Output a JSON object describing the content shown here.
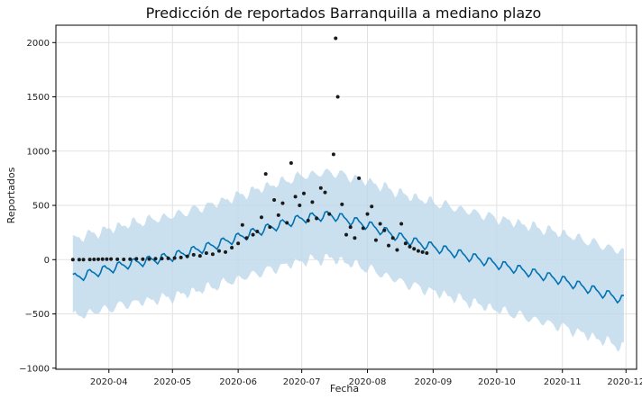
{
  "chart_data": {
    "type": "line",
    "title": "Predicción de reportados Barranquilla a mediano plazo",
    "xlabel": "Fecha",
    "ylabel": "Reportados",
    "x_ticks": [
      "2020-04",
      "2020-05",
      "2020-06",
      "2020-07",
      "2020-08",
      "2020-09",
      "2020-10",
      "2020-11",
      "2020-12"
    ],
    "x_tick_dates": [
      "2020-04-01",
      "2020-05-01",
      "2020-06-01",
      "2020-07-01",
      "2020-08-01",
      "2020-09-01",
      "2020-10-01",
      "2020-11-01",
      "2020-12-01"
    ],
    "y_ticks": [
      "−1000",
      "−500",
      "0",
      "500",
      "1000",
      "1500",
      "2000"
    ],
    "y_tick_values": [
      -1000,
      -500,
      0,
      500,
      1000,
      1500,
      2000
    ],
    "xlim": [
      "2020-03-07",
      "2020-12-06"
    ],
    "ylim": [
      -1010,
      2160
    ],
    "grid": true,
    "colors": {
      "forecast": "#0072B2",
      "interval": "#bcd7ea",
      "observed": "#1a1a1a",
      "grid": "#e2e2e2"
    },
    "forecast_anchors": [
      {
        "x": "2020-03-15",
        "y": -170
      },
      {
        "x": "2020-03-25",
        "y": -120
      },
      {
        "x": "2020-04-10",
        "y": -40
      },
      {
        "x": "2020-05-01",
        "y": 30
      },
      {
        "x": "2020-05-20",
        "y": 130
      },
      {
        "x": "2020-06-10",
        "y": 260
      },
      {
        "x": "2020-07-01",
        "y": 380
      },
      {
        "x": "2020-07-15",
        "y": 410
      },
      {
        "x": "2020-08-01",
        "y": 320
      },
      {
        "x": "2020-08-20",
        "y": 180
      },
      {
        "x": "2020-09-10",
        "y": 70
      },
      {
        "x": "2020-10-01",
        "y": -40
      },
      {
        "x": "2020-11-01",
        "y": -190
      },
      {
        "x": "2020-11-30",
        "y": -370
      }
    ],
    "weekly_amplitude": 38,
    "interval_half_width_start": 360,
    "interval_half_width_end": 440,
    "observed_points": [
      {
        "x": "2020-03-15",
        "y": 0
      },
      {
        "x": "2020-03-18",
        "y": 0
      },
      {
        "x": "2020-03-20",
        "y": 0
      },
      {
        "x": "2020-03-23",
        "y": 1
      },
      {
        "x": "2020-03-25",
        "y": 2
      },
      {
        "x": "2020-03-27",
        "y": 3
      },
      {
        "x": "2020-03-29",
        "y": 5
      },
      {
        "x": "2020-03-31",
        "y": 4
      },
      {
        "x": "2020-04-02",
        "y": 6
      },
      {
        "x": "2020-04-05",
        "y": 3
      },
      {
        "x": "2020-04-08",
        "y": 2
      },
      {
        "x": "2020-04-11",
        "y": 5
      },
      {
        "x": "2020-04-14",
        "y": 8
      },
      {
        "x": "2020-04-17",
        "y": 4
      },
      {
        "x": "2020-04-20",
        "y": 6
      },
      {
        "x": "2020-04-23",
        "y": 9
      },
      {
        "x": "2020-04-26",
        "y": 10
      },
      {
        "x": "2020-04-29",
        "y": 12
      },
      {
        "x": "2020-05-02",
        "y": 15
      },
      {
        "x": "2020-05-05",
        "y": 20
      },
      {
        "x": "2020-05-08",
        "y": 30
      },
      {
        "x": "2020-05-11",
        "y": 45
      },
      {
        "x": "2020-05-14",
        "y": 35
      },
      {
        "x": "2020-05-17",
        "y": 60
      },
      {
        "x": "2020-05-20",
        "y": 50
      },
      {
        "x": "2020-05-23",
        "y": 80
      },
      {
        "x": "2020-05-26",
        "y": 70
      },
      {
        "x": "2020-05-29",
        "y": 110
      },
      {
        "x": "2020-06-01",
        "y": 150
      },
      {
        "x": "2020-06-03",
        "y": 320
      },
      {
        "x": "2020-06-05",
        "y": 200
      },
      {
        "x": "2020-06-08",
        "y": 230
      },
      {
        "x": "2020-06-10",
        "y": 260
      },
      {
        "x": "2020-06-12",
        "y": 390
      },
      {
        "x": "2020-06-14",
        "y": 790
      },
      {
        "x": "2020-06-16",
        "y": 300
      },
      {
        "x": "2020-06-18",
        "y": 550
      },
      {
        "x": "2020-06-20",
        "y": 410
      },
      {
        "x": "2020-06-22",
        "y": 520
      },
      {
        "x": "2020-06-24",
        "y": 340
      },
      {
        "x": "2020-06-26",
        "y": 890
      },
      {
        "x": "2020-06-28",
        "y": 580
      },
      {
        "x": "2020-06-30",
        "y": 500
      },
      {
        "x": "2020-07-02",
        "y": 610
      },
      {
        "x": "2020-07-04",
        "y": 360
      },
      {
        "x": "2020-07-06",
        "y": 530
      },
      {
        "x": "2020-07-08",
        "y": 380
      },
      {
        "x": "2020-07-10",
        "y": 660
      },
      {
        "x": "2020-07-12",
        "y": 620
      },
      {
        "x": "2020-07-14",
        "y": 420
      },
      {
        "x": "2020-07-16",
        "y": 970
      },
      {
        "x": "2020-07-17",
        "y": 2040
      },
      {
        "x": "2020-07-18",
        "y": 1500
      },
      {
        "x": "2020-07-20",
        "y": 510
      },
      {
        "x": "2020-07-22",
        "y": 230
      },
      {
        "x": "2020-07-24",
        "y": 300
      },
      {
        "x": "2020-07-26",
        "y": 200
      },
      {
        "x": "2020-07-28",
        "y": 750
      },
      {
        "x": "2020-07-30",
        "y": 290
      },
      {
        "x": "2020-08-01",
        "y": 420
      },
      {
        "x": "2020-08-03",
        "y": 490
      },
      {
        "x": "2020-08-05",
        "y": 180
      },
      {
        "x": "2020-08-07",
        "y": 330
      },
      {
        "x": "2020-08-09",
        "y": 270
      },
      {
        "x": "2020-08-11",
        "y": 130
      },
      {
        "x": "2020-08-13",
        "y": 200
      },
      {
        "x": "2020-08-15",
        "y": 90
      },
      {
        "x": "2020-08-17",
        "y": 330
      },
      {
        "x": "2020-08-19",
        "y": 150
      },
      {
        "x": "2020-08-21",
        "y": 120
      },
      {
        "x": "2020-08-23",
        "y": 100
      },
      {
        "x": "2020-08-25",
        "y": 80
      },
      {
        "x": "2020-08-27",
        "y": 70
      },
      {
        "x": "2020-08-29",
        "y": 60
      }
    ]
  }
}
